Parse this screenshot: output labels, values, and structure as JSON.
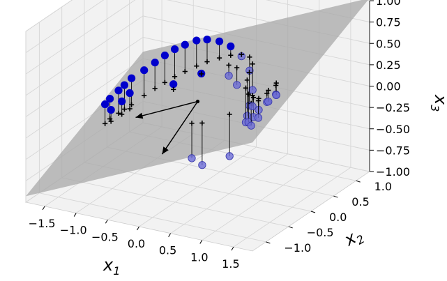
{
  "chart_data": {
    "type": "scatter",
    "title": "",
    "axes": {
      "x": {
        "label": "x",
        "label_sub": "1",
        "ticks": [
          -1.5,
          -1.0,
          -0.5,
          0.0,
          0.5,
          1.0,
          1.5
        ],
        "tick_labels": [
          "−1.5",
          "−1.0",
          "−0.5",
          "0.0",
          "0.5",
          "1.0",
          "1.5"
        ]
      },
      "y": {
        "label": "x",
        "label_sub": "2",
        "ticks": [
          -1.0,
          -0.5,
          0.0,
          0.5,
          1.0
        ],
        "tick_labels": [
          "−1.0",
          "−0.5",
          "0.0",
          "0.5",
          "1.0"
        ]
      },
      "z": {
        "label": "x",
        "label_sub": "3",
        "ticks": [
          -1.0,
          -0.75,
          -0.5,
          -0.25,
          0.0,
          0.25,
          0.5,
          0.75,
          1.0
        ],
        "tick_labels": [
          "−1.00",
          "−0.75",
          "−0.50",
          "−0.25",
          "0.00",
          "0.25",
          "0.50",
          "0.75",
          "1.00"
        ]
      }
    },
    "grid": true,
    "colors": {
      "points_above": "#0000cc",
      "points_below": "#6b6bd6",
      "plane": "#a8a8a8",
      "projection_marker": "#000000",
      "pane": "#f2f2f2"
    },
    "series": [
      {
        "name": "",
        "marker": "circle",
        "points": [
          [
            -1.38,
            -0.02,
            -0.18
          ],
          [
            -1.3,
            0.06,
            -0.1
          ],
          [
            -1.25,
            0.12,
            -0.05
          ],
          [
            -1.18,
            0.18,
            0.02
          ],
          [
            -1.32,
            -0.08,
            -0.28
          ],
          [
            -1.22,
            0.02,
            -0.2
          ],
          [
            -1.08,
            0.32,
            0.08
          ],
          [
            -0.98,
            0.42,
            0.15
          ],
          [
            -0.88,
            0.5,
            0.22
          ],
          [
            -0.78,
            0.58,
            0.28
          ],
          [
            -0.66,
            0.64,
            0.33
          ],
          [
            -0.52,
            0.7,
            0.38
          ],
          [
            -0.38,
            0.74,
            0.4
          ],
          [
            -0.2,
            0.76,
            0.4
          ],
          [
            -0.02,
            0.76,
            0.37
          ],
          [
            0.18,
            0.72,
            0.3
          ],
          [
            0.38,
            0.62,
            0.2
          ],
          [
            0.55,
            0.45,
            0.06
          ],
          [
            0.62,
            0.28,
            -0.05
          ],
          [
            0.7,
            0.12,
            -0.1
          ],
          [
            0.8,
            -0.05,
            -0.1
          ],
          [
            0.95,
            -0.2,
            -0.02
          ],
          [
            1.1,
            -0.3,
            0.1
          ],
          [
            1.22,
            -0.35,
            0.22
          ],
          [
            1.3,
            -0.28,
            0.3
          ],
          [
            1.35,
            -0.15,
            0.35
          ],
          [
            1.25,
            -0.4,
            0.15
          ],
          [
            1.15,
            -0.42,
            0.05
          ],
          [
            1.28,
            -0.22,
            0.28
          ],
          [
            1.32,
            -0.1,
            0.32
          ],
          [
            1.05,
            -0.25,
            0.2
          ],
          [
            0.9,
            -0.55,
            -0.3
          ],
          [
            0.5,
            -0.6,
            -0.45
          ],
          [
            0.3,
            -0.55,
            -0.42
          ],
          [
            -0.6,
            0.3,
            0.0
          ],
          [
            -0.3,
            0.5,
            0.1
          ],
          [
            0.1,
            0.55,
            0.12
          ],
          [
            0.3,
            0.45,
            0.08
          ],
          [
            -1.4,
            -0.1,
            -0.22
          ],
          [
            -1.15,
            0.1,
            -0.12
          ]
        ]
      }
    ],
    "plane": {
      "corners": [
        [
          -1.8,
          -1.3,
          -0.93
        ],
        [
          1.8,
          -1.3,
          0.27
        ],
        [
          1.8,
          1.3,
          1.03
        ],
        [
          -1.8,
          1.3,
          -0.17
        ]
      ]
    },
    "vectors": [
      {
        "from": [
          0.0,
          0.0,
          0.0
        ],
        "to": [
          -0.95,
          -0.05,
          -0.32
        ]
      },
      {
        "from": [
          0.0,
          0.0,
          0.0
        ],
        "to": [
          -0.1,
          -0.65,
          -0.4
        ]
      }
    ]
  }
}
